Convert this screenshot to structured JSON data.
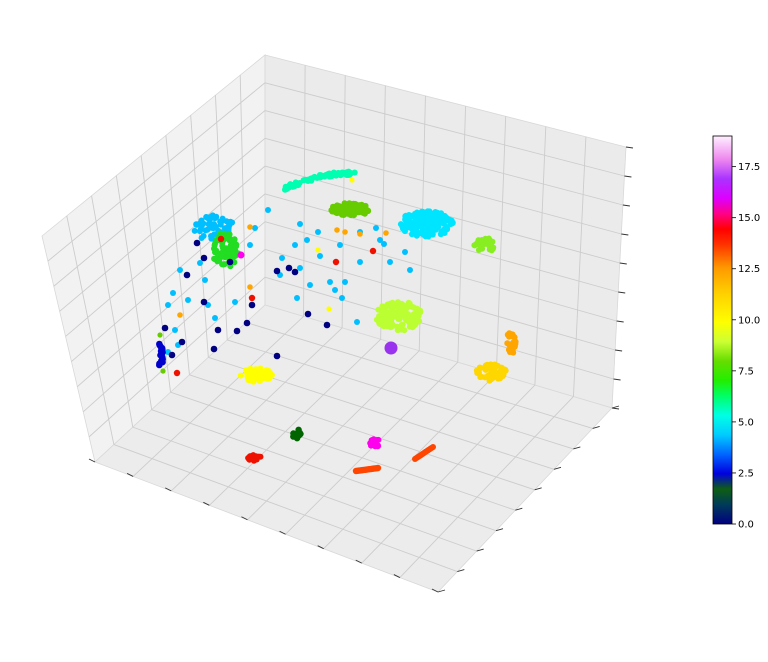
{
  "chart_data": {
    "type": "scatter",
    "projection": "3d",
    "title": "",
    "xlabel": "",
    "ylabel": "",
    "zlabel": "",
    "grid": true,
    "axis_tick_labels_shown": false,
    "colormap": "gist_ncar",
    "colorbar": {
      "placement": "right",
      "range": [
        0.0,
        19.0
      ],
      "ticks": [
        "0.0",
        "2.5",
        "5.0",
        "7.5",
        "10.0",
        "12.5",
        "15.0",
        "17.5"
      ]
    },
    "clusters": [
      {
        "label": 0,
        "color": "#000080",
        "description": "scattered points"
      },
      {
        "label": 1,
        "color": "#0000cd",
        "description": "cluster"
      },
      {
        "label": 2,
        "color": "#006400",
        "description": "cluster"
      },
      {
        "label": 3,
        "color": "#00bfff",
        "description": "cluster plus scattered points"
      },
      {
        "label": 4,
        "color": "#00e5ff",
        "description": "cluster"
      },
      {
        "label": 5,
        "color": "#00ffb0",
        "description": "arc cluster"
      },
      {
        "label": 6,
        "color": "#22dd22",
        "description": "cluster"
      },
      {
        "label": 7,
        "color": "#66cc00",
        "description": "cluster"
      },
      {
        "label": 8,
        "color": "#88ee22",
        "description": "cluster"
      },
      {
        "label": 9,
        "color": "#bbff33",
        "description": "cluster"
      },
      {
        "label": 10,
        "color": "#ffff00",
        "description": "cluster"
      },
      {
        "label": 11,
        "color": "#ffd700",
        "description": "cluster"
      },
      {
        "label": 12,
        "color": "#ffa500",
        "description": "cluster"
      },
      {
        "label": 13,
        "color": "#ff4500",
        "description": "two clusters"
      },
      {
        "label": 14,
        "color": "#ee1100",
        "description": "cluster"
      },
      {
        "label": 15,
        "color": "#ff00ee",
        "description": "cluster"
      },
      {
        "label": 16,
        "color": "#9933ee",
        "description": "single large point"
      }
    ]
  }
}
